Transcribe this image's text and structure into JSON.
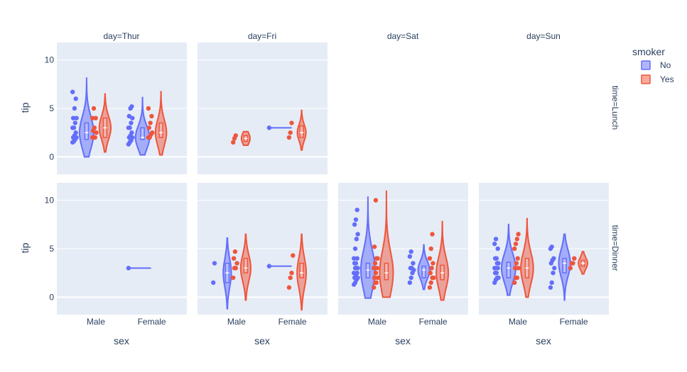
{
  "chart_data": {
    "type": "violin",
    "legend": {
      "title": "smoker",
      "items": [
        {
          "label": "No",
          "color": "#636efa"
        },
        {
          "label": "Yes",
          "color": "#ef553b"
        }
      ],
      "position": "top-right"
    },
    "facet_col_labels": [
      "day=Thur",
      "day=Fri",
      "day=Sat",
      "day=Sun"
    ],
    "facet_row_labels": [
      "time=Lunch",
      "time=Dinner"
    ],
    "xlabel": "sex",
    "ylabel": "tip",
    "categories": [
      "Male",
      "Female"
    ],
    "ylim": [
      -1.8,
      11.8
    ],
    "yticks": [
      0,
      5,
      10
    ],
    "grid": true,
    "panels": [
      {
        "row": 0,
        "col": 0,
        "series": [
          {
            "smoker": "No",
            "sex": "Male",
            "points": [
              1.5,
              1.6,
              1.8,
              2.0,
              2.0,
              2.2,
              2.5,
              3.0,
              3.0,
              3.5,
              4.0,
              4.0,
              5.0,
              6.0,
              6.7
            ],
            "range": [
              0.0,
              8.2
            ],
            "q1": 1.8,
            "median": 2.5,
            "q3": 3.5
          },
          {
            "smoker": "Yes",
            "sex": "Male",
            "points": [
              2.0,
              2.0,
              2.0,
              2.5,
              2.7,
              3.0,
              4.0,
              4.0,
              5.0
            ],
            "range": [
              0.5,
              6.5
            ],
            "q1": 2.0,
            "median": 3.0,
            "q3": 4.0
          },
          {
            "smoker": "No",
            "sex": "Female",
            "points": [
              1.3,
              1.5,
              1.7,
              2.0,
              2.0,
              2.2,
              2.5,
              3.0,
              3.0,
              3.5,
              4.0,
              4.2,
              5.0,
              5.2
            ],
            "range": [
              0.2,
              6.2
            ],
            "q1": 1.8,
            "median": 2.0,
            "q3": 3.0
          },
          {
            "smoker": "Yes",
            "sex": "Female",
            "points": [
              2.0,
              2.0,
              2.3,
              2.5,
              3.0,
              3.5,
              4.2,
              5.0
            ],
            "range": [
              0.2,
              6.8
            ],
            "q1": 2.0,
            "median": 2.5,
            "q3": 3.5
          }
        ]
      },
      {
        "row": 0,
        "col": 1,
        "series": [
          {
            "smoker": "Yes",
            "sex": "Male",
            "points": [
              1.5,
              1.9,
              2.2
            ],
            "range": [
              1.2,
              2.6
            ],
            "q1": 1.6,
            "median": 1.9,
            "q3": 2.2
          },
          {
            "smoker": "No",
            "sex": "Female",
            "points": [
              3.0
            ],
            "range": [
              3.0,
              3.0
            ],
            "q1": 3.0,
            "median": 3.0,
            "q3": 3.0
          },
          {
            "smoker": "Yes",
            "sex": "Female",
            "points": [
              2.0,
              2.5,
              3.5
            ],
            "range": [
              0.7,
              4.8
            ],
            "q1": 2.0,
            "median": 2.5,
            "q3": 3.2
          }
        ]
      },
      {
        "row": 1,
        "col": 0,
        "series": [
          {
            "smoker": "No",
            "sex": "Female",
            "points": [
              3.0
            ],
            "range": [
              3.0,
              3.0
            ],
            "q1": 3.0,
            "median": 3.0,
            "q3": 3.0
          }
        ]
      },
      {
        "row": 1,
        "col": 1,
        "series": [
          {
            "smoker": "No",
            "sex": "Male",
            "points": [
              1.5,
              3.5
            ],
            "range": [
              -1.2,
              6.1
            ],
            "q1": 1.5,
            "median": 2.5,
            "q3": 3.5
          },
          {
            "smoker": "Yes",
            "sex": "Male",
            "points": [
              2.0,
              3.0,
              3.0,
              3.5,
              4.0,
              4.7
            ],
            "range": [
              -0.3,
              6.5
            ],
            "q1": 2.5,
            "median": 3.0,
            "q3": 4.0
          },
          {
            "smoker": "No",
            "sex": "Female",
            "points": [
              3.2
            ],
            "range": [
              3.2,
              3.2
            ],
            "q1": 3.2,
            "median": 3.2,
            "q3": 3.2
          },
          {
            "smoker": "Yes",
            "sex": "Female",
            "points": [
              1.0,
              2.0,
              2.5,
              4.3
            ],
            "range": [
              -1.3,
              6.5
            ],
            "q1": 2.0,
            "median": 2.5,
            "q3": 3.5
          }
        ]
      },
      {
        "row": 1,
        "col": 2,
        "series": [
          {
            "smoker": "No",
            "sex": "Male",
            "points": [
              1.3,
              1.5,
              1.8,
              2.0,
              2.0,
              2.2,
              2.5,
              2.5,
              3.0,
              3.0,
              3.0,
              3.5,
              3.5,
              4.0,
              4.0,
              5.0,
              6.0,
              6.5,
              7.5,
              8.0,
              9.0
            ],
            "range": [
              -0.1,
              10.4
            ],
            "q1": 2.0,
            "median": 2.8,
            "q3": 3.5
          },
          {
            "smoker": "Yes",
            "sex": "Male",
            "points": [
              1.0,
              1.5,
              1.5,
              2.0,
              2.0,
              2.5,
              3.0,
              3.0,
              3.5,
              4.0,
              4.0,
              5.2,
              10.0
            ],
            "range": [
              0.0,
              11.0
            ],
            "q1": 1.8,
            "median": 2.5,
            "q3": 3.5
          },
          {
            "smoker": "No",
            "sex": "Female",
            "points": [
              1.5,
              2.0,
              2.5,
              2.8,
              3.0,
              3.0,
              3.5,
              4.2,
              4.7
            ],
            "range": [
              0.8,
              5.4
            ],
            "q1": 2.0,
            "median": 2.8,
            "q3": 3.2
          },
          {
            "smoker": "Yes",
            "sex": "Female",
            "points": [
              1.0,
              1.5,
              2.0,
              2.0,
              2.5,
              3.0,
              3.5,
              4.0,
              5.0,
              6.5
            ],
            "range": [
              -0.3,
              7.8
            ],
            "q1": 1.8,
            "median": 2.5,
            "q3": 3.3
          }
        ]
      },
      {
        "row": 1,
        "col": 3,
        "series": [
          {
            "smoker": "No",
            "sex": "Male",
            "points": [
              1.5,
              1.8,
              2.0,
              2.0,
              2.5,
              2.5,
              3.0,
              3.0,
              3.0,
              3.5,
              3.5,
              4.0,
              4.0,
              5.0,
              5.5,
              6.0
            ],
            "range": [
              0.2,
              7.5
            ],
            "q1": 2.0,
            "median": 3.0,
            "q3": 3.6
          },
          {
            "smoker": "Yes",
            "sex": "Male",
            "points": [
              1.5,
              2.0,
              2.0,
              3.0,
              3.0,
              3.5,
              4.0,
              5.0,
              5.5,
              6.0,
              6.5
            ],
            "range": [
              0.0,
              8.1
            ],
            "q1": 2.0,
            "median": 3.0,
            "q3": 4.0
          },
          {
            "smoker": "No",
            "sex": "Female",
            "points": [
              1.0,
              1.5,
              2.5,
              3.0,
              3.5,
              3.8,
              4.0,
              5.0,
              5.2
            ],
            "range": [
              -0.3,
              6.5
            ],
            "q1": 2.5,
            "median": 3.5,
            "q3": 4.0
          },
          {
            "smoker": "Yes",
            "sex": "Female",
            "points": [
              3.0,
              3.5,
              3.5,
              4.0
            ],
            "range": [
              2.4,
              4.7
            ],
            "q1": 3.2,
            "median": 3.5,
            "q3": 3.8
          }
        ]
      }
    ]
  }
}
